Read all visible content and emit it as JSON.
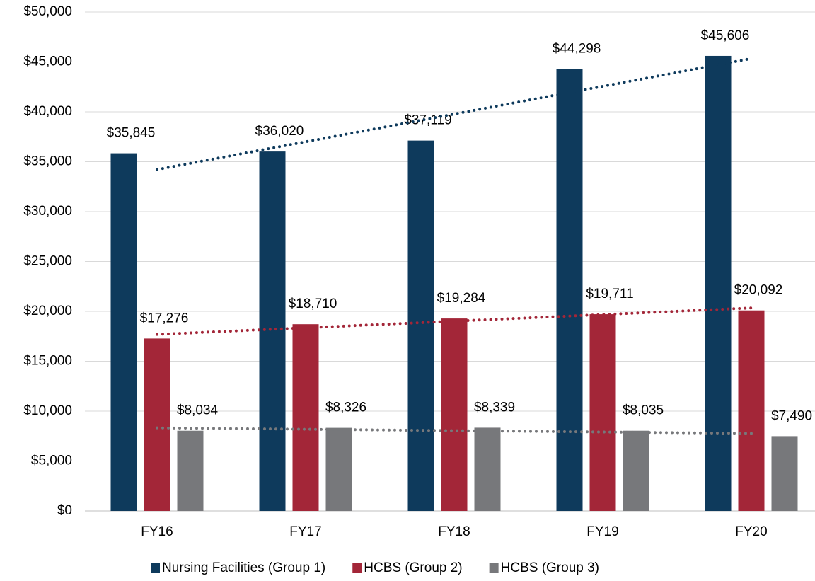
{
  "chart_data": {
    "type": "bar",
    "categories": [
      "FY16",
      "FY17",
      "FY18",
      "FY19",
      "FY20"
    ],
    "series": [
      {
        "name": "Nursing Facilities (Group 1)",
        "color": "#0e3a5c",
        "values": [
          35845,
          36020,
          37119,
          44298,
          45606
        ],
        "value_labels": [
          "$35,845",
          "$36,020",
          "$37,119",
          "$44,298",
          "$45,606"
        ]
      },
      {
        "name": "HCBS (Group 2)",
        "color": "#a32638",
        "values": [
          17276,
          18710,
          19284,
          19711,
          20092
        ],
        "value_labels": [
          "$17,276",
          "$18,710",
          "$19,284",
          "$19,711",
          "$20,092"
        ]
      },
      {
        "name": "HCBS (Group 3)",
        "color": "#77787b",
        "values": [
          8034,
          8326,
          8339,
          8035,
          7490
        ],
        "value_labels": [
          "$8,034",
          "$8,326",
          "$8,339",
          "$8,035",
          "$7,490"
        ]
      }
    ],
    "ylim": [
      0,
      50000
    ],
    "yticks": [
      {
        "value": 0,
        "label": "$0"
      },
      {
        "value": 5000,
        "label": "$5,000"
      },
      {
        "value": 10000,
        "label": "$10,000"
      },
      {
        "value": 15000,
        "label": "$15,000"
      },
      {
        "value": 20000,
        "label": "$20,000"
      },
      {
        "value": 25000,
        "label": "$25,000"
      },
      {
        "value": 30000,
        "label": "$30,000"
      },
      {
        "value": 35000,
        "label": "$35,000"
      },
      {
        "value": 40000,
        "label": "$40,000"
      },
      {
        "value": 45000,
        "label": "$45,000"
      },
      {
        "value": 50000,
        "label": "$50,000"
      }
    ],
    "grid": true,
    "trendline": "linear",
    "legend": "bottom"
  }
}
